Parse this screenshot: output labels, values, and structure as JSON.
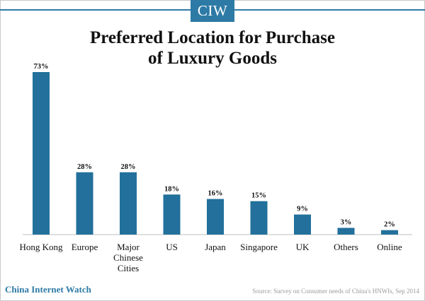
{
  "logo": {
    "text": "CIW"
  },
  "title": {
    "line1": "Preferred Location for Purchase",
    "line2": "of Luxury Goods"
  },
  "footer": {
    "brand": "China Internet Watch",
    "source": "Source: Survey on Consumer needs of China's HNWIs, Sep 2014"
  },
  "colors": {
    "bar": "#22709b",
    "accent": "#2e7aa6"
  },
  "chart_data": {
    "type": "bar",
    "title": "Preferred Location for Purchase of Luxury Goods",
    "categories": [
      [
        "Hong Kong"
      ],
      [
        "Europe"
      ],
      [
        "Major",
        "Chinese",
        "Cities"
      ],
      [
        "US"
      ],
      [
        "Japan"
      ],
      [
        "Singapore"
      ],
      [
        "UK"
      ],
      [
        "Others"
      ],
      [
        "Online"
      ]
    ],
    "values": [
      73,
      28,
      28,
      18,
      16,
      15,
      9,
      3,
      2
    ],
    "value_labels": [
      "73%",
      "28%",
      "28%",
      "18%",
      "16%",
      "15%",
      "9%",
      "3%",
      "2%"
    ],
    "unit": "%",
    "ylim": [
      0,
      73
    ],
    "grid": false,
    "legend": "none"
  }
}
